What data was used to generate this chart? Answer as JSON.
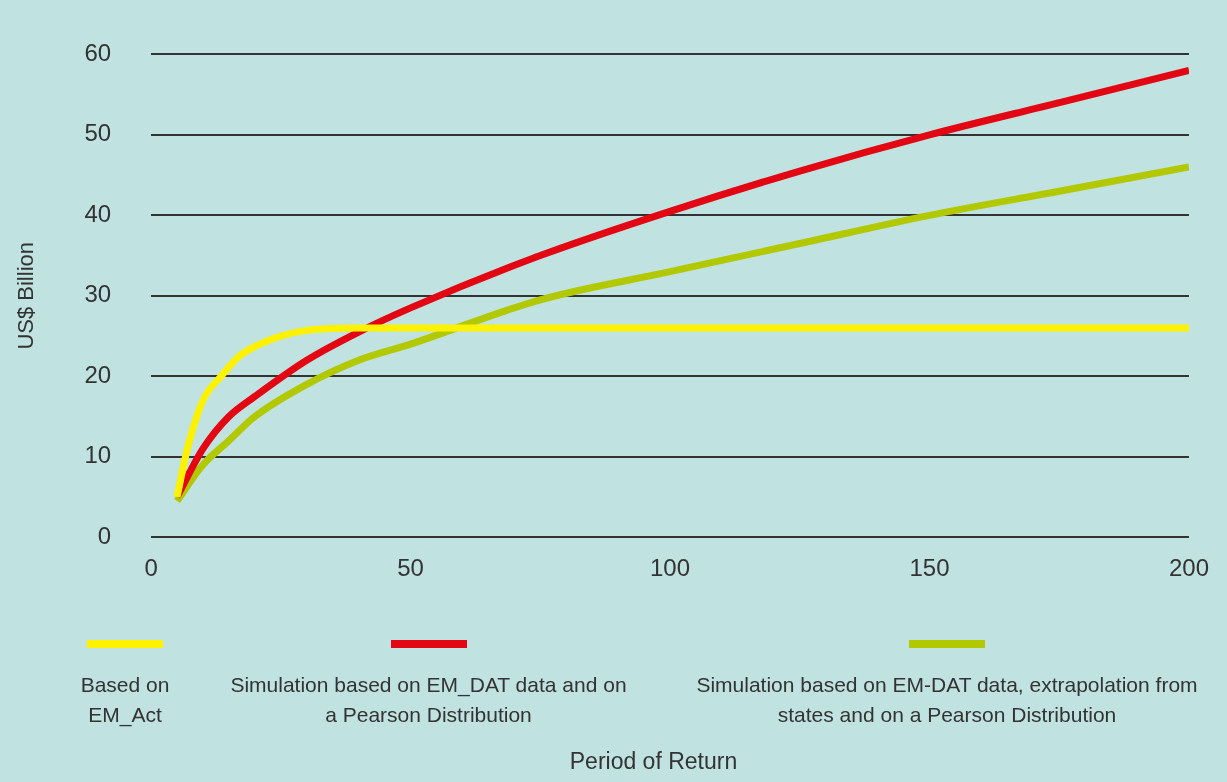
{
  "chart_data": {
    "type": "line",
    "annotations": [
      "Period of Return"
    ],
    "ylabel": "US$ Billion",
    "xlim": [
      0,
      200
    ],
    "xticks": [
      0,
      50,
      100,
      150,
      200
    ],
    "ylim": [
      0,
      60
    ],
    "yticks": [
      0,
      10,
      20,
      30,
      40,
      50,
      60
    ],
    "grid": "y",
    "legend": "bottom",
    "marker": "none",
    "line_style": "solid",
    "series": [
      {
        "name": "Based on EM_Act",
        "color": "#fff200",
        "x": [
          5,
          7,
          10,
          13.5,
          17,
          21,
          25,
          30,
          40,
          200
        ],
        "values": [
          5,
          11,
          17,
          20,
          22.5,
          24,
          25,
          25.7,
          26,
          26
        ]
      },
      {
        "name": "Simulation based on EM_DAT data and on a Pearson Distribution",
        "color": "#e30613",
        "x": [
          5,
          10,
          15,
          20,
          30,
          40,
          50,
          75,
          100,
          125,
          150,
          175,
          200
        ],
        "values": [
          5,
          11,
          15,
          17.5,
          22,
          25.5,
          28.5,
          35,
          40.5,
          45.5,
          50,
          54,
          58
        ]
      },
      {
        "name": "Simulation based on EM-DAT data, extrapolation from states and on a Pearson Distribution",
        "color": "#b2c800",
        "x": [
          5,
          10,
          15,
          20,
          30,
          40,
          50,
          75,
          100,
          125,
          150,
          175,
          200
        ],
        "values": [
          4.5,
          9,
          12,
          15,
          19,
          22,
          24,
          29.5,
          33,
          36.5,
          40,
          43,
          46
        ]
      }
    ]
  }
}
